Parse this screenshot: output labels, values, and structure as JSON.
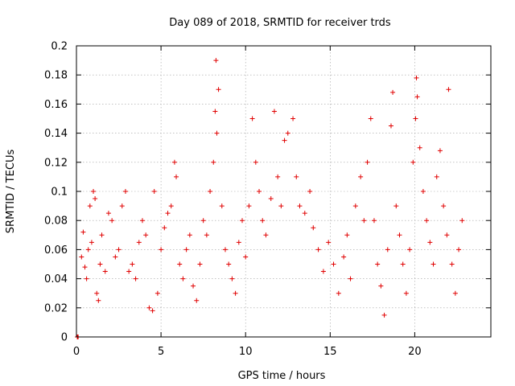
{
  "chart_data": {
    "type": "scatter",
    "title": "Day 089 of 2018, SRMTID for receiver trds",
    "xlabel": "GPS time / hours",
    "ylabel": "SRMTID / TECUs",
    "xlim": [
      0,
      24.5
    ],
    "ylim": [
      0,
      0.2
    ],
    "x_ticks": [
      0,
      5,
      10,
      15,
      20
    ],
    "x_tick_labels": [
      "0",
      "5",
      "10",
      "15",
      "20"
    ],
    "y_ticks": [
      0,
      0.02,
      0.04,
      0.06,
      0.08,
      0.1,
      0.12,
      0.14,
      0.16,
      0.18,
      0.2
    ],
    "y_tick_labels": [
      "0",
      "0.02",
      "0.04",
      "0.06",
      "0.08",
      "0.1",
      "0.12",
      "0.14",
      "0.16",
      "0.18",
      "0.2"
    ],
    "grid": true,
    "marker": "+",
    "color": "#e00000",
    "series": [
      {
        "name": "SRMTID",
        "points": [
          [
            0.05,
            0.0
          ],
          [
            0.08,
            0.0
          ],
          [
            0.1,
            0.0
          ],
          [
            0.3,
            0.055
          ],
          [
            0.4,
            0.072
          ],
          [
            0.5,
            0.048
          ],
          [
            0.6,
            0.04
          ],
          [
            0.7,
            0.06
          ],
          [
            0.8,
            0.09
          ],
          [
            0.9,
            0.065
          ],
          [
            1.0,
            0.1
          ],
          [
            1.1,
            0.095
          ],
          [
            1.2,
            0.03
          ],
          [
            1.3,
            0.025
          ],
          [
            1.4,
            0.05
          ],
          [
            1.5,
            0.07
          ],
          [
            1.7,
            0.045
          ],
          [
            1.9,
            0.085
          ],
          [
            2.1,
            0.08
          ],
          [
            2.3,
            0.055
          ],
          [
            2.5,
            0.06
          ],
          [
            2.7,
            0.09
          ],
          [
            2.9,
            0.1
          ],
          [
            3.1,
            0.045
          ],
          [
            3.3,
            0.05
          ],
          [
            3.5,
            0.04
          ],
          [
            3.7,
            0.065
          ],
          [
            3.9,
            0.08
          ],
          [
            4.1,
            0.07
          ],
          [
            4.3,
            0.02
          ],
          [
            4.5,
            0.018
          ],
          [
            4.6,
            0.1
          ],
          [
            4.8,
            0.03
          ],
          [
            5.0,
            0.06
          ],
          [
            5.2,
            0.075
          ],
          [
            5.4,
            0.085
          ],
          [
            5.6,
            0.09
          ],
          [
            5.8,
            0.12
          ],
          [
            5.9,
            0.11
          ],
          [
            6.1,
            0.05
          ],
          [
            6.3,
            0.04
          ],
          [
            6.5,
            0.06
          ],
          [
            6.7,
            0.07
          ],
          [
            6.9,
            0.035
          ],
          [
            7.1,
            0.025
          ],
          [
            7.3,
            0.05
          ],
          [
            7.5,
            0.08
          ],
          [
            7.7,
            0.07
          ],
          [
            7.9,
            0.1
          ],
          [
            8.1,
            0.12
          ],
          [
            8.2,
            0.155
          ],
          [
            8.25,
            0.19
          ],
          [
            8.3,
            0.14
          ],
          [
            8.4,
            0.17
          ],
          [
            8.6,
            0.09
          ],
          [
            8.8,
            0.06
          ],
          [
            9.0,
            0.05
          ],
          [
            9.2,
            0.04
          ],
          [
            9.4,
            0.03
          ],
          [
            9.6,
            0.065
          ],
          [
            9.8,
            0.08
          ],
          [
            10.0,
            0.055
          ],
          [
            10.2,
            0.09
          ],
          [
            10.4,
            0.15
          ],
          [
            10.6,
            0.12
          ],
          [
            10.8,
            0.1
          ],
          [
            11.0,
            0.08
          ],
          [
            11.2,
            0.07
          ],
          [
            11.5,
            0.095
          ],
          [
            11.7,
            0.155
          ],
          [
            11.9,
            0.11
          ],
          [
            12.1,
            0.09
          ],
          [
            12.3,
            0.135
          ],
          [
            12.5,
            0.14
          ],
          [
            12.8,
            0.15
          ],
          [
            13.0,
            0.11
          ],
          [
            13.2,
            0.09
          ],
          [
            13.5,
            0.085
          ],
          [
            13.8,
            0.1
          ],
          [
            14.0,
            0.075
          ],
          [
            14.3,
            0.06
          ],
          [
            14.6,
            0.045
          ],
          [
            14.9,
            0.065
          ],
          [
            15.2,
            0.05
          ],
          [
            15.5,
            0.03
          ],
          [
            15.8,
            0.055
          ],
          [
            16.0,
            0.07
          ],
          [
            16.2,
            0.04
          ],
          [
            16.5,
            0.09
          ],
          [
            16.8,
            0.11
          ],
          [
            17.0,
            0.08
          ],
          [
            17.2,
            0.12
          ],
          [
            17.4,
            0.15
          ],
          [
            17.6,
            0.08
          ],
          [
            17.8,
            0.05
          ],
          [
            18.0,
            0.035
          ],
          [
            18.2,
            0.015
          ],
          [
            18.4,
            0.06
          ],
          [
            18.6,
            0.145
          ],
          [
            18.7,
            0.168
          ],
          [
            18.9,
            0.09
          ],
          [
            19.1,
            0.07
          ],
          [
            19.3,
            0.05
          ],
          [
            19.5,
            0.03
          ],
          [
            19.7,
            0.06
          ],
          [
            19.9,
            0.12
          ],
          [
            20.05,
            0.15
          ],
          [
            20.1,
            0.178
          ],
          [
            20.15,
            0.165
          ],
          [
            20.3,
            0.13
          ],
          [
            20.5,
            0.1
          ],
          [
            20.7,
            0.08
          ],
          [
            20.9,
            0.065
          ],
          [
            21.1,
            0.05
          ],
          [
            21.3,
            0.11
          ],
          [
            21.5,
            0.128
          ],
          [
            21.7,
            0.09
          ],
          [
            21.9,
            0.07
          ],
          [
            22.0,
            0.17
          ],
          [
            22.2,
            0.05
          ],
          [
            22.4,
            0.03
          ],
          [
            22.6,
            0.06
          ],
          [
            22.8,
            0.08
          ]
        ]
      }
    ]
  }
}
